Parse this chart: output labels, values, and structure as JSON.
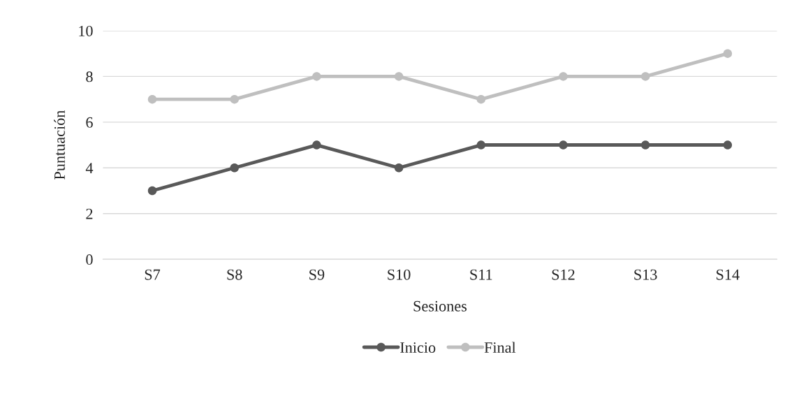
{
  "chart_data": {
    "type": "line",
    "xlabel": "Sesiones",
    "ylabel": "Puntuación",
    "categories": [
      "S7",
      "S8",
      "S9",
      "S10",
      "S11",
      "S12",
      "S13",
      "S14"
    ],
    "series": [
      {
        "name": "Inicio",
        "color": "#595959",
        "values": [
          3,
          4,
          5,
          4,
          5,
          5,
          5,
          5
        ]
      },
      {
        "name": "Final",
        "color": "#bfbfbf",
        "values": [
          7,
          7,
          8,
          8,
          7,
          8,
          8,
          9
        ]
      }
    ],
    "ylim": [
      0,
      10
    ],
    "yticks": [
      0,
      2,
      4,
      6,
      8,
      10
    ],
    "grid": "y",
    "legend": "bottom",
    "marker": "circle",
    "line_style": "solid"
  }
}
